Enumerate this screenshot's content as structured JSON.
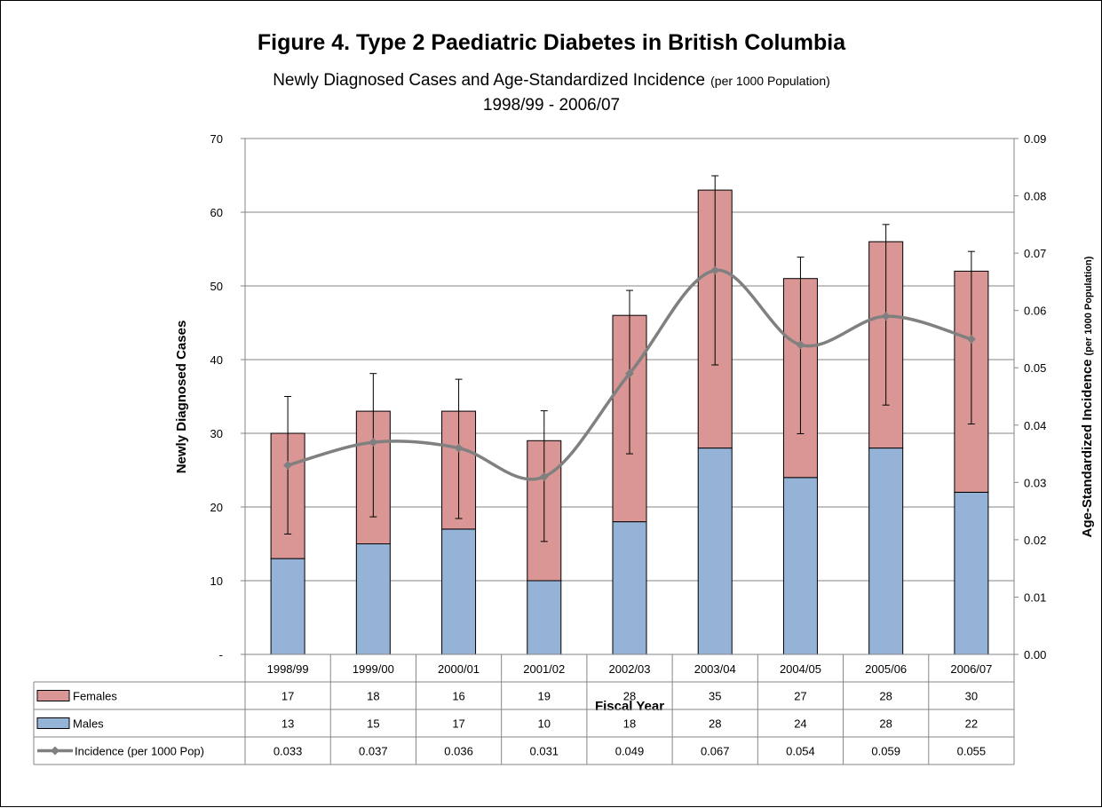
{
  "chart_data": {
    "type": "bar",
    "stacked": true,
    "title": "Figure 4. Type 2 Paediatric Diabetes in British Columbia",
    "subtitle_main": "Newly Diagnosed Cases and Age-Standardized Incidence",
    "subtitle_unit": "(per 1000 Population)",
    "subtitle_range": "1998/99 - 2006/07",
    "xlabel": "Fiscal Year",
    "ylabel": "Newly Diagnosed Cases",
    "y2label_main": "Age-Standardized Incidence",
    "y2label_unit": "(per 1000 Population)",
    "ylim": [
      0,
      70
    ],
    "y2lim": [
      0,
      0.09
    ],
    "yticks": [
      "-",
      "10",
      "20",
      "30",
      "40",
      "50",
      "60",
      "70"
    ],
    "y2ticks": [
      "0.00",
      "0.01",
      "0.02",
      "0.03",
      "0.04",
      "0.05",
      "0.06",
      "0.07",
      "0.08",
      "0.09"
    ],
    "grid": true,
    "categories": [
      "1998/99",
      "1999/00",
      "2000/01",
      "2001/02",
      "2002/03",
      "2003/04",
      "2004/05",
      "2005/06",
      "2006/07"
    ],
    "series": [
      {
        "name": "Females",
        "kind": "bar",
        "color": "#d99694",
        "values": [
          17,
          18,
          16,
          19,
          28,
          35,
          27,
          28,
          30
        ],
        "labels": [
          "17",
          "18",
          "16",
          "19",
          "28",
          "35",
          "27",
          "28",
          "30"
        ]
      },
      {
        "name": "Males",
        "kind": "bar",
        "color": "#95b3d7",
        "values": [
          13,
          15,
          17,
          10,
          18,
          28,
          24,
          28,
          22
        ],
        "labels": [
          "13",
          "15",
          "17",
          "10",
          "18",
          "28",
          "24",
          "28",
          "22"
        ]
      },
      {
        "name": "Incidence (per 1000 Pop)",
        "kind": "line",
        "axis": "secondary",
        "color": "#808080",
        "values": [
          0.033,
          0.037,
          0.036,
          0.031,
          0.049,
          0.067,
          0.054,
          0.059,
          0.055
        ],
        "labels": [
          "0.033",
          "0.037",
          "0.036",
          "0.031",
          "0.049",
          "0.067",
          "0.054",
          "0.059",
          "0.055"
        ],
        "ci_low": [
          0.021,
          0.024,
          0.0237,
          0.0197,
          0.035,
          0.0505,
          0.0385,
          0.0435,
          0.0402
        ],
        "ci_high": [
          0.045,
          0.049,
          0.048,
          0.0425,
          0.0635,
          0.0835,
          0.0693,
          0.075,
          0.0703
        ]
      }
    ],
    "legend": "data-table"
  }
}
